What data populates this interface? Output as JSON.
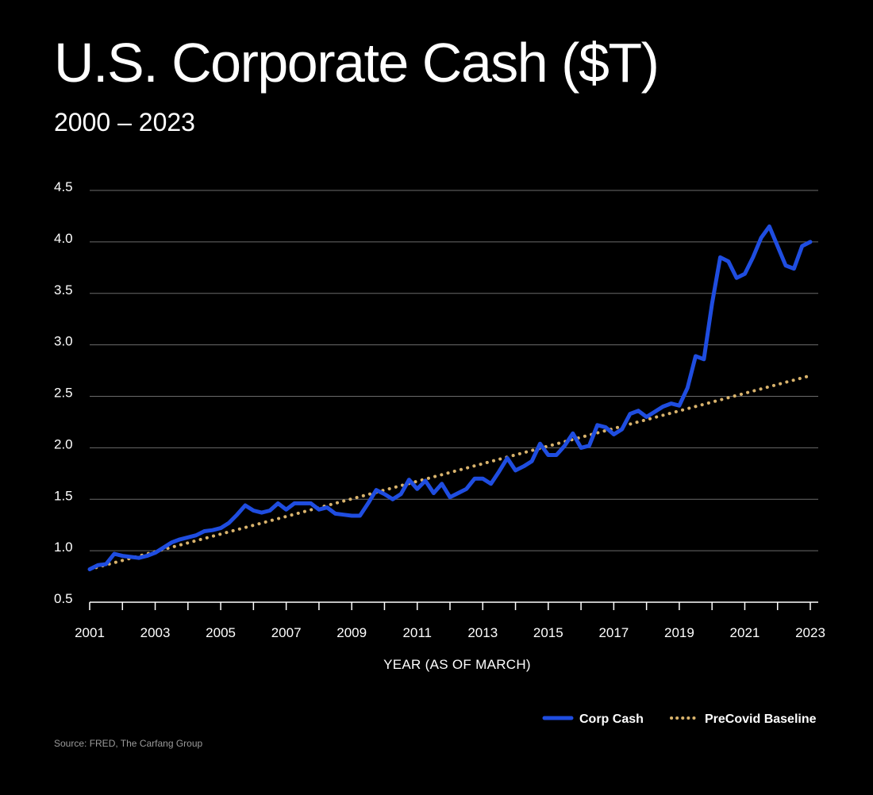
{
  "chart_data": {
    "type": "line",
    "title": "U.S. Corporate Cash ($T)",
    "subtitle": "2000 – 2023",
    "xlabel": "YEAR (AS OF MARCH)",
    "ylabel": "",
    "xlim": [
      2001,
      2023
    ],
    "ylim": [
      0.5,
      4.5
    ],
    "yticks": [
      "4.5",
      "4.0",
      "3.5",
      "3.0",
      "2.5",
      "2.0",
      "1.5",
      "1.0",
      "0.5"
    ],
    "yticks_values": [
      4.5,
      4.0,
      3.5,
      3.0,
      2.5,
      2.0,
      1.5,
      1.0,
      0.5
    ],
    "xticks": [
      "2001",
      "2003",
      "2005",
      "2007",
      "2009",
      "2011",
      "2013",
      "2015",
      "2017",
      "2019",
      "2021",
      "2023"
    ],
    "xticks_values": [
      2001,
      2003,
      2005,
      2007,
      2009,
      2011,
      2013,
      2015,
      2017,
      2019,
      2021,
      2023
    ],
    "grid": true,
    "legend_position": "bottom-right",
    "series": [
      {
        "name": "Corp Cash",
        "color": "#1f4de0",
        "style": "solid",
        "x": [
          2001.0,
          2001.25,
          2001.5,
          2001.75,
          2002.0,
          2002.25,
          2002.5,
          2002.75,
          2003.0,
          2003.25,
          2003.5,
          2003.75,
          2004.0,
          2004.25,
          2004.5,
          2004.75,
          2005.0,
          2005.25,
          2005.5,
          2005.75,
          2006.0,
          2006.25,
          2006.5,
          2006.75,
          2007.0,
          2007.25,
          2007.5,
          2007.75,
          2008.0,
          2008.25,
          2008.5,
          2008.75,
          2009.0,
          2009.25,
          2009.5,
          2009.75,
          2010.0,
          2010.25,
          2010.5,
          2010.75,
          2011.0,
          2011.25,
          2011.5,
          2011.75,
          2012.0,
          2012.25,
          2012.5,
          2012.75,
          2013.0,
          2013.25,
          2013.5,
          2013.75,
          2014.0,
          2014.25,
          2014.5,
          2014.75,
          2015.0,
          2015.25,
          2015.5,
          2015.75,
          2016.0,
          2016.25,
          2016.5,
          2016.75,
          2017.0,
          2017.25,
          2017.5,
          2017.75,
          2018.0,
          2018.25,
          2018.5,
          2018.75,
          2019.0,
          2019.25,
          2019.5,
          2019.75,
          2020.0,
          2020.25,
          2020.5,
          2020.75,
          2021.0,
          2021.25,
          2021.5,
          2021.75,
          2022.0,
          2022.25,
          2022.5,
          2022.75,
          2023.0
        ],
        "values": [
          0.82,
          0.86,
          0.87,
          0.97,
          0.95,
          0.94,
          0.93,
          0.95,
          0.98,
          1.03,
          1.08,
          1.11,
          1.13,
          1.15,
          1.19,
          1.2,
          1.22,
          1.27,
          1.35,
          1.44,
          1.39,
          1.37,
          1.39,
          1.46,
          1.4,
          1.46,
          1.46,
          1.46,
          1.4,
          1.42,
          1.36,
          1.35,
          1.34,
          1.34,
          1.46,
          1.59,
          1.55,
          1.5,
          1.55,
          1.69,
          1.6,
          1.68,
          1.56,
          1.65,
          1.52,
          1.56,
          1.6,
          1.7,
          1.7,
          1.65,
          1.77,
          1.9,
          1.78,
          1.82,
          1.87,
          2.04,
          1.93,
          1.93,
          2.02,
          2.14,
          2.0,
          2.02,
          2.22,
          2.2,
          2.13,
          2.18,
          2.33,
          2.36,
          2.3,
          2.35,
          2.4,
          2.43,
          2.41,
          2.58,
          2.89,
          2.86,
          3.4,
          3.85,
          3.81,
          3.65,
          3.69,
          3.85,
          4.04,
          4.15,
          3.96,
          3.77,
          3.74,
          3.96,
          4.0
        ]
      },
      {
        "name": "PreCovid Baseline",
        "color": "#d9b36c",
        "style": "dotted",
        "x": [
          2001.0,
          2023.0
        ],
        "values": [
          0.82,
          2.7
        ]
      }
    ]
  },
  "source": "Source: FRED, The Carfang Group"
}
